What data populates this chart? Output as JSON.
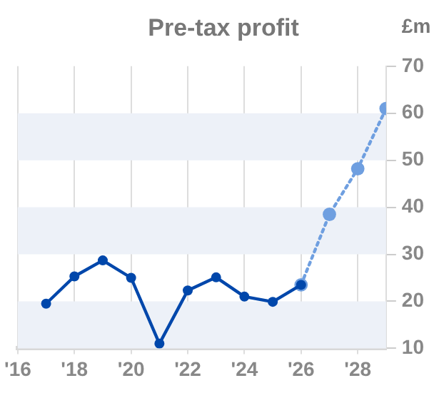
{
  "chart_data": {
    "type": "line",
    "title": "Pre-tax profit",
    "ylabel": "£m",
    "x": [
      2017,
      2018,
      2019,
      2020,
      2021,
      2022,
      2023,
      2024,
      2025,
      2026,
      2027,
      2028,
      2029
    ],
    "series": [
      {
        "color": "#0047ab",
        "line_style": "solid",
        "values": [
          19.5,
          25.3,
          28.7,
          25,
          11,
          22.3,
          25.1,
          21,
          19.9,
          23.5,
          null,
          null,
          null
        ]
      },
      {
        "color": "#6f9fe0",
        "line_style": "dotted",
        "values": [
          null,
          null,
          null,
          null,
          null,
          null,
          null,
          null,
          null,
          23.5,
          38.5,
          48.2,
          61
        ]
      }
    ],
    "xlim": [
      2016,
      2029
    ],
    "xticks": [
      {
        "value": 2016,
        "label": "'16"
      },
      {
        "value": 2018,
        "label": "'18"
      },
      {
        "value": 2020,
        "label": "'20"
      },
      {
        "value": 2022,
        "label": "'22"
      },
      {
        "value": 2024,
        "label": "'24"
      },
      {
        "value": 2026,
        "label": "'26"
      },
      {
        "value": 2028,
        "label": "'28"
      }
    ],
    "ylim": [
      10,
      70
    ],
    "yticks": [
      10,
      20,
      30,
      40,
      50,
      60,
      70
    ],
    "bands": [
      {
        "axis": "y",
        "from": 10,
        "to": 20,
        "color": "#edf1f8"
      },
      {
        "axis": "y",
        "from": 30,
        "to": 40,
        "color": "#edf1f8"
      },
      {
        "axis": "y",
        "from": 50,
        "to": 60,
        "color": "#edf1f8"
      }
    ],
    "grid": "x",
    "legend": false,
    "marker": "circle"
  }
}
